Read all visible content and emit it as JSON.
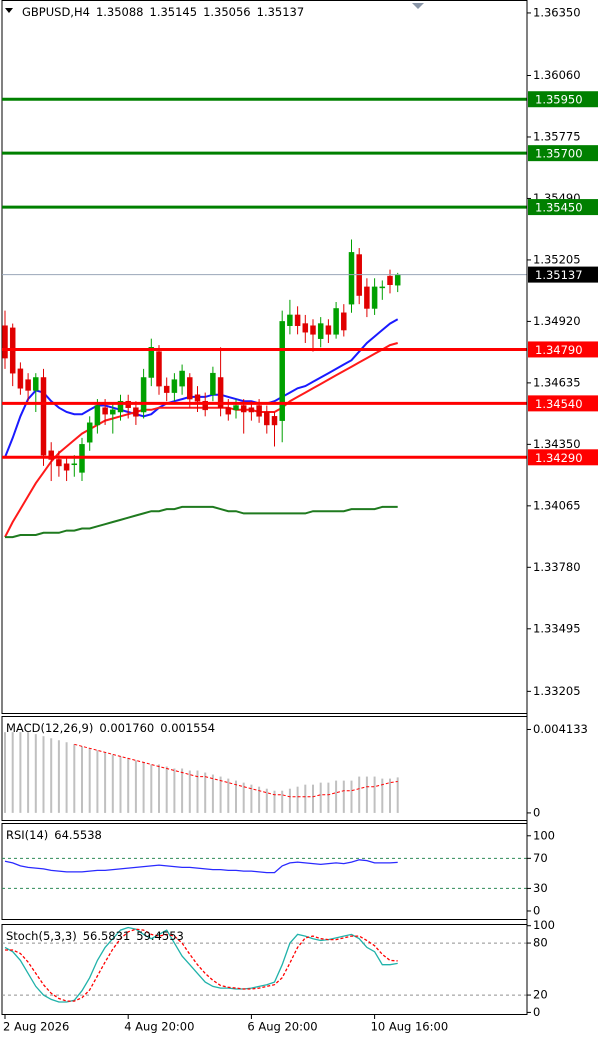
{
  "chart_data": [
    {
      "type": "candlestick",
      "title": "GBPUSD,H4",
      "categories": [
        "2 Aug 2026",
        null,
        null,
        null,
        null,
        null,
        null,
        null,
        null,
        null,
        null,
        null,
        null,
        null,
        null,
        null,
        "4 Aug 20:00",
        null,
        null,
        null,
        null,
        null,
        null,
        null,
        null,
        null,
        null,
        null,
        null,
        null,
        null,
        null,
        "6 Aug 20:00",
        null,
        null,
        null,
        null,
        null,
        null,
        null,
        null,
        null,
        null,
        null,
        null,
        null,
        null,
        null,
        "10 Aug 16:00",
        null,
        null,
        null
      ],
      "open": [
        1.349,
        1.3489,
        1.347,
        1.3465,
        1.346,
        1.3466,
        1.3432,
        1.3428,
        1.3426,
        1.3426,
        1.3422,
        1.3436,
        1.3444,
        1.3452,
        1.3449,
        1.345,
        1.3455,
        1.3452,
        1.345,
        1.3466,
        1.3478,
        1.3462,
        1.3459,
        1.3462,
        1.3466,
        1.3458,
        1.3455,
        1.3458,
        1.3466,
        1.3452,
        1.3451,
        1.3453,
        1.3452,
        1.3453,
        1.345,
        1.3448,
        1.3446,
        1.349,
        1.3495,
        1.3491,
        1.349,
        1.3484,
        1.349,
        1.3486,
        1.3496,
        1.35,
        1.3523,
        1.3508,
        1.3498,
        1.3508,
        1.3513,
        1.35088
      ],
      "high": [
        1.3497,
        1.3491,
        1.3473,
        1.3468,
        1.3468,
        1.347,
        1.3436,
        1.3432,
        1.3429,
        1.343,
        1.3438,
        1.3448,
        1.3456,
        1.3456,
        1.3454,
        1.3458,
        1.3458,
        1.3455,
        1.347,
        1.3484,
        1.3481,
        1.3466,
        1.3468,
        1.3472,
        1.3468,
        1.3462,
        1.3459,
        1.3471,
        1.348,
        1.3456,
        1.3456,
        1.3456,
        1.3455,
        1.3456,
        1.3453,
        1.345,
        1.3497,
        1.3502,
        1.3499,
        1.3495,
        1.3493,
        1.3494,
        1.3493,
        1.3501,
        1.35,
        1.353,
        1.3526,
        1.3512,
        1.3512,
        1.3511,
        1.3516,
        1.35145
      ],
      "low": [
        1.347,
        1.3462,
        1.3458,
        1.3455,
        1.345,
        1.3425,
        1.3418,
        1.342,
        1.3418,
        1.342,
        1.3418,
        1.3432,
        1.344,
        1.3444,
        1.344,
        1.3446,
        1.3447,
        1.3444,
        1.3447,
        1.3462,
        1.3458,
        1.3455,
        1.3455,
        1.3458,
        1.3452,
        1.345,
        1.3448,
        1.3455,
        1.3448,
        1.3446,
        1.3447,
        1.344,
        1.3446,
        1.3445,
        1.344,
        1.3434,
        1.3436,
        1.3486,
        1.3486,
        1.3482,
        1.3478,
        1.348,
        1.3482,
        1.3484,
        1.3485,
        1.3496,
        1.35,
        1.3494,
        1.3495,
        1.3502,
        1.3505,
        1.35056
      ],
      "close": [
        1.3475,
        1.3468,
        1.3461,
        1.346,
        1.3466,
        1.343,
        1.3428,
        1.3425,
        1.3423,
        1.3426,
        1.3435,
        1.3445,
        1.3453,
        1.3449,
        1.3451,
        1.3455,
        1.3452,
        1.3448,
        1.3466,
        1.348,
        1.3462,
        1.3459,
        1.3465,
        1.3469,
        1.3456,
        1.3455,
        1.3451,
        1.3468,
        1.3452,
        1.3449,
        1.3453,
        1.345,
        1.345,
        1.3448,
        1.3444,
        1.3444,
        1.3492,
        1.3495,
        1.349,
        1.3487,
        1.3486,
        1.3491,
        1.3486,
        1.3498,
        1.3488,
        1.3524,
        1.3504,
        1.3498,
        1.3508,
        1.3508,
        1.3509,
        1.35137
      ],
      "up_color": "#00a000",
      "down_color": "#e00000",
      "series": [
        {
          "color": "#1a1aff",
          "values": [
            1.3429,
            1.3438,
            1.3448,
            1.3456,
            1.346,
            1.3459,
            1.3455,
            1.3452,
            1.345,
            1.3449,
            1.3449,
            1.3451,
            1.3453,
            1.3453,
            1.3452,
            1.3451,
            1.345,
            1.3449,
            1.3448,
            1.3449,
            1.3452,
            1.3454,
            1.3455,
            1.3456,
            1.3457,
            1.3457,
            1.3457,
            1.3458,
            1.3458,
            1.3457,
            1.3456,
            1.3455,
            1.3455,
            1.3454,
            1.3454,
            1.3455,
            1.3457,
            1.3459,
            1.3461,
            1.3462,
            1.3464,
            1.3466,
            1.3468,
            1.347,
            1.3472,
            1.3474,
            1.3478,
            1.3482,
            1.3485,
            1.3488,
            1.3491,
            1.3493
          ]
        },
        {
          "color": "#ff1a1a",
          "values": [
            1.3392,
            1.3399,
            1.3405,
            1.3411,
            1.3417,
            1.3422,
            1.3427,
            1.3431,
            1.3434,
            1.3437,
            1.344,
            1.3442,
            1.3444,
            1.3446,
            1.3447,
            1.3448,
            1.3449,
            1.345,
            1.3451,
            1.3451,
            1.3452,
            1.3452,
            1.3452,
            1.3452,
            1.3452,
            1.3452,
            1.3452,
            1.3452,
            1.3452,
            1.3452,
            1.3451,
            1.3451,
            1.3451,
            1.345,
            1.345,
            1.345,
            1.3452,
            1.3455,
            1.3457,
            1.3459,
            1.3461,
            1.3463,
            1.3465,
            1.3467,
            1.3469,
            1.3471,
            1.3473,
            1.3475,
            1.3477,
            1.3479,
            1.3481,
            1.3482
          ]
        },
        {
          "color": "#1f7a1f",
          "values": [
            1.3392,
            1.3392,
            1.3393,
            1.3393,
            1.3393,
            1.3394,
            1.3394,
            1.3394,
            1.3395,
            1.3395,
            1.3396,
            1.3396,
            1.3397,
            1.3398,
            1.3399,
            1.34,
            1.3401,
            1.3402,
            1.3403,
            1.3404,
            1.3404,
            1.3405,
            1.3405,
            1.3406,
            1.3406,
            1.3406,
            1.3406,
            1.3406,
            1.3405,
            1.3404,
            1.3404,
            1.3403,
            1.3403,
            1.3403,
            1.3403,
            1.3403,
            1.3403,
            1.3403,
            1.3403,
            1.3403,
            1.3404,
            1.3404,
            1.3404,
            1.3404,
            1.3404,
            1.3405,
            1.3405,
            1.3405,
            1.3405,
            1.3406,
            1.3406,
            1.3406
          ]
        }
      ],
      "hlines": [
        {
          "value": 1.3595,
          "label": "1.35950",
          "color": "#008000"
        },
        {
          "value": 1.357,
          "label": "1.35700",
          "color": "#008000"
        },
        {
          "value": 1.3545,
          "label": "1.35450",
          "color": "#008000"
        },
        {
          "value": 1.3479,
          "label": "1.34790",
          "color": "#ff0000"
        },
        {
          "value": 1.3454,
          "label": "1.34540",
          "color": "#ff0000"
        },
        {
          "value": 1.3429,
          "label": "1.34290",
          "color": "#ff0000"
        }
      ],
      "ylim": [
        1.331,
        1.3641
      ],
      "yticks": [
        {
          "value": 1.3635,
          "label": "1.36350"
        },
        {
          "value": 1.3606,
          "label": "1.36060"
        },
        1.35775,
        {
          "value": 1.3549,
          "label": "1.35490"
        },
        1.35205,
        {
          "value": 1.3492,
          "label": "1.34920"
        },
        1.34635,
        {
          "value": 1.3435,
          "label": "1.34350"
        },
        1.34065,
        {
          "value": 1.3378,
          "label": "1.33780"
        },
        1.33495,
        1.33205
      ]
    },
    {
      "type": "macd",
      "title": "MACD(12,26,9)",
      "readouts": [
        {
          "value": 0.00176,
          "label": "0.001760"
        },
        {
          "value": 0.001554,
          "label": "0.001554"
        }
      ],
      "series": [
        {
          "color": "#c0c0c0",
          "values": [
            0.004,
            0.004,
            0.004,
            0.004,
            0.0039,
            0.0038,
            0.0037,
            0.0036,
            0.0035,
            0.0034,
            0.0033,
            0.0032,
            0.0031,
            0.003,
            0.0029,
            0.0028,
            0.0027,
            0.0026,
            0.0025,
            0.0024,
            0.0024,
            0.0023,
            0.0022,
            0.0022,
            0.0021,
            0.0021,
            0.002,
            0.0019,
            0.0018,
            0.0017,
            0.0016,
            0.0015,
            0.0014,
            0.0013,
            0.0012,
            0.0011,
            0.0011,
            0.0012,
            0.0013,
            0.0014,
            0.0014,
            0.0015,
            0.0015,
            0.0016,
            0.0016,
            0.0016,
            0.0018,
            0.0018,
            0.0018,
            0.0017,
            0.0017,
            0.00176
          ]
        },
        {
          "color": "#ff0000",
          "values": [
            null,
            null,
            null,
            null,
            null,
            null,
            null,
            null,
            null,
            0.0034,
            0.0033,
            0.0032,
            0.0031,
            0.003,
            0.0029,
            0.0028,
            0.0027,
            0.0026,
            0.0025,
            0.0024,
            0.0023,
            0.0022,
            0.0021,
            0.002,
            0.0019,
            0.0018,
            0.0018,
            0.0017,
            0.0016,
            0.0015,
            0.0014,
            0.0013,
            0.0012,
            0.0011,
            0.001,
            0.0009,
            0.0009,
            0.0008,
            0.0008,
            0.0008,
            0.0008,
            0.0009,
            0.0009,
            0.001,
            0.0011,
            0.0011,
            0.0012,
            0.0013,
            0.0013,
            0.0014,
            0.0015,
            0.001554
          ]
        }
      ],
      "ylim": [
        -0.0004,
        0.0048
      ],
      "yticks": [
        0.004133,
        0
      ]
    },
    {
      "type": "line",
      "title": "RSI(14)",
      "series": [
        {
          "color": "#2a2aff",
          "values": [
            66,
            64,
            60,
            58,
            57,
            56,
            54,
            53,
            52,
            52,
            52,
            53,
            54,
            54,
            55,
            56,
            57,
            58,
            59,
            60,
            61,
            60,
            59,
            58,
            58,
            57,
            56,
            55,
            55,
            54,
            54,
            53,
            53,
            52,
            51,
            51,
            60,
            64,
            65,
            64,
            63,
            62,
            63,
            64,
            63,
            65,
            68,
            67,
            64,
            64,
            64,
            64.5538
          ]
        }
      ],
      "levels": [
        70,
        30
      ],
      "level_color": "#2e8b57",
      "ylim": [
        -12,
        117
      ],
      "yticks": [
        100,
        70,
        30,
        0
      ]
    },
    {
      "type": "line",
      "title": "Stoch(5,3,3)",
      "series": [
        {
          "color": "#20b2aa",
          "values": [
            75,
            70,
            60,
            45,
            30,
            20,
            15,
            12,
            12,
            14,
            25,
            40,
            60,
            75,
            85,
            95,
            98,
            96,
            90,
            85,
            90,
            95,
            80,
            65,
            55,
            45,
            35,
            30,
            28,
            28,
            27,
            27,
            28,
            30,
            32,
            35,
            55,
            80,
            90,
            88,
            85,
            83,
            84,
            86,
            88,
            90,
            85,
            75,
            70,
            55,
            55,
            56.5831
          ]
        },
        {
          "color": "#ff0000",
          "dashed": true,
          "values": [
            72,
            72,
            68,
            58,
            45,
            32,
            22,
            16,
            13,
            13,
            17,
            26,
            42,
            58,
            73,
            85,
            93,
            96,
            95,
            90,
            88,
            90,
            88,
            80,
            67,
            55,
            45,
            37,
            31,
            29,
            28,
            27,
            27,
            28,
            30,
            32,
            40,
            57,
            75,
            86,
            88,
            85,
            84,
            84,
            86,
            88,
            88,
            83,
            77,
            67,
            60,
            59.4553
          ]
        }
      ],
      "levels": [
        80,
        20
      ],
      "level_color": "#909090",
      "ylim": [
        -3,
        102
      ],
      "yticks": [
        100,
        80,
        20,
        0
      ]
    }
  ]
}
